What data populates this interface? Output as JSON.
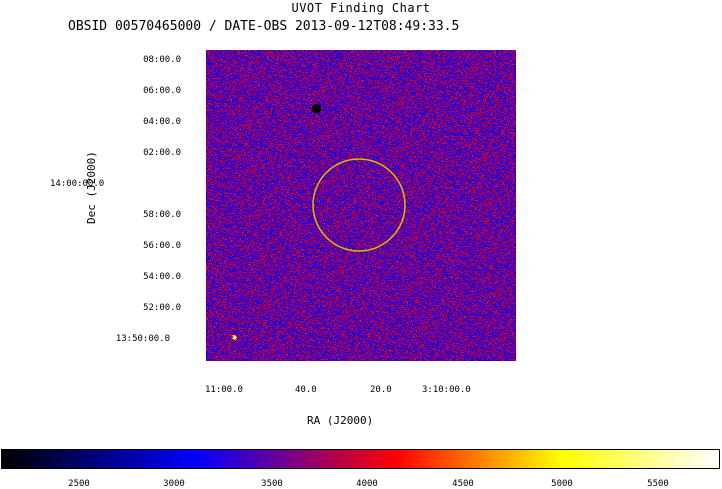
{
  "header": {
    "title": "UVOT Finding Chart",
    "subtitle": "OBSID 00570465000 / DATE-OBS 2013-09-12T08:49:33.5"
  },
  "axes": {
    "ylabel": "Dec (J2000)",
    "xlabel": "RA (J2000)",
    "dec_ticks": [
      "08:00.0",
      "06:00.0",
      "04:00.0",
      "02:00.0",
      "14:00:00.0",
      "58:00.0",
      "56:00.0",
      "54:00.0",
      "52:00.0",
      "13:50:00.0"
    ],
    "ra_ticks": [
      "11:00.0",
      "40.0",
      "20.0",
      "3:10:00.0"
    ]
  },
  "image": {
    "colormap": [
      "#000000",
      "#0000ff",
      "#ff0000",
      "#ffff00",
      "#ffffff"
    ],
    "region_circle_color": "#d4c200"
  },
  "colorbar": {
    "ticks": [
      "2500",
      "3000",
      "3500",
      "4000",
      "4500",
      "5000",
      "5500"
    ]
  }
}
